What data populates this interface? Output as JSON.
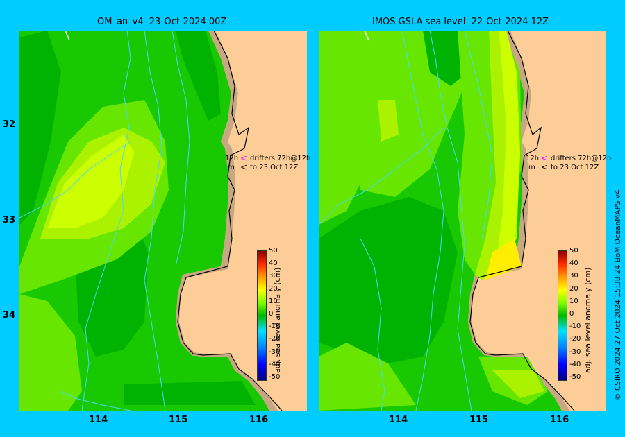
{
  "panels": [
    {
      "title": "OM_an_v4  23-Oct-2024 00Z"
    },
    {
      "title": "IMOS GSLA sea level  22-Oct-2024 12Z"
    }
  ],
  "axes": {
    "lat_labels": [
      "32",
      "33",
      "34"
    ],
    "lon_labels": [
      "114",
      "115",
      "116"
    ]
  },
  "annotation": {
    "label_12h": "12h",
    "line1": "drifters 72h@12h",
    "label_m": "m",
    "line2": "to 23 Oct 12Z",
    "arrow1_color": "#ff00ff",
    "arrow2_color": "#000000"
  },
  "colorbar": {
    "title": "adj. sea level anomaly (cm)",
    "ticks": [
      "50",
      "40",
      "30",
      "20",
      "10",
      "0",
      "-10",
      "-20",
      "-30",
      "-40",
      "-50"
    ]
  },
  "credit": "© CSIRO 2024   27 Oct 2024 15:38:24 BoM OceanMAPS v4",
  "colors": {
    "background": "#00ccff",
    "land": "#fdcd98",
    "shelf": "#c8a882",
    "dark_green": "#00b300",
    "green": "#18c800",
    "light_green": "#66e600",
    "yellow_green": "#aaf200",
    "lime": "#ccff00",
    "yellow": "#ffee00"
  }
}
